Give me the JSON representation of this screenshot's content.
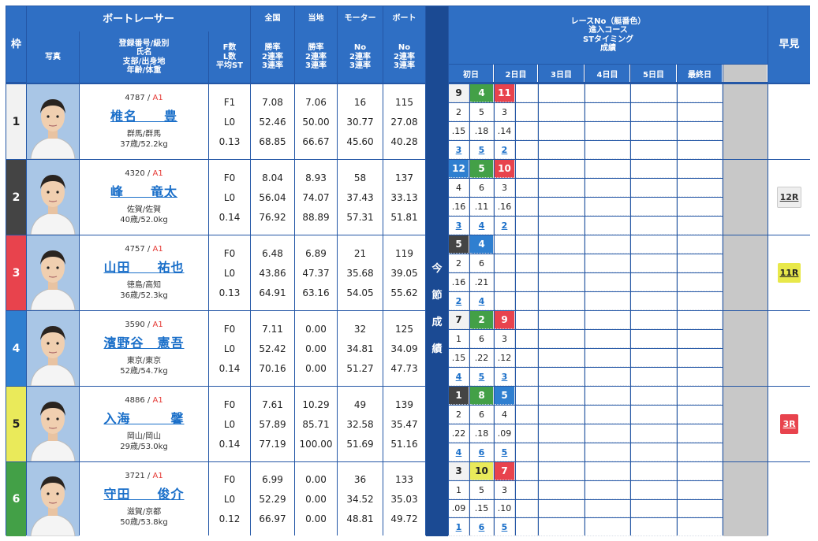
{
  "headers": {
    "waku": "枠",
    "photo": "写真",
    "racer": "ボートレーサー",
    "profile_lines": [
      "登録番号/級別",
      "氏名",
      "支部/出身地",
      "年齢/体重"
    ],
    "fl_lines": [
      "F数",
      "L数",
      "平均ST"
    ],
    "zenkoku": "全国",
    "touchi": "当地",
    "motor": "モーター",
    "boat": "ボート",
    "rate_lines": [
      "勝率",
      "2連率",
      "3連率"
    ],
    "no_lines": [
      "No",
      "2連率",
      "3連率"
    ],
    "race_lines": [
      "レースNo（艇番色）",
      "進入コース",
      "STタイミング",
      "成績"
    ],
    "days": [
      "初日",
      "2日目",
      "3日目",
      "4日目",
      "5日目",
      "最終日"
    ],
    "hayami": "早見",
    "konsetsu": [
      "今",
      "節",
      "成",
      "績"
    ]
  },
  "racers": [
    {
      "waku": "1",
      "reg": "4787",
      "cls": "A1",
      "name": "椎名　　豊",
      "pref": "群馬/群馬",
      "age": "37歳/52.2kg",
      "f": "F1",
      "l": "L0",
      "st": "0.13",
      "zenkoku": [
        "7.08",
        "52.46",
        "68.85"
      ],
      "touchi": [
        "7.06",
        "50.00",
        "66.67"
      ],
      "motor": [
        "16",
        "30.77",
        "45.60"
      ],
      "boat": [
        "115",
        "27.08",
        "40.28"
      ],
      "races": [
        {
          "no": "9",
          "color": "1",
          "course": "2",
          "st": ".15",
          "res": "3"
        },
        {
          "no": "4",
          "color": "6",
          "course": "5",
          "st": ".18",
          "res": "5"
        },
        {
          "no": "11",
          "color": "3",
          "course": "3",
          "st": ".14",
          "res": "2"
        }
      ],
      "hayami": ""
    },
    {
      "waku": "2",
      "reg": "4320",
      "cls": "A1",
      "name": "峰　　竜太",
      "pref": "佐賀/佐賀",
      "age": "40歳/52.0kg",
      "f": "F0",
      "l": "L0",
      "st": "0.14",
      "zenkoku": [
        "8.04",
        "56.04",
        "76.92"
      ],
      "touchi": [
        "8.93",
        "74.07",
        "88.89"
      ],
      "motor": [
        "58",
        "37.43",
        "57.31"
      ],
      "boat": [
        "137",
        "33.13",
        "51.81"
      ],
      "races": [
        {
          "no": "12",
          "color": "4",
          "course": "4",
          "st": ".16",
          "res": "3"
        },
        {
          "no": "5",
          "color": "6",
          "course": "6",
          "st": ".11",
          "res": "4"
        },
        {
          "no": "10",
          "color": "3",
          "course": "3",
          "st": ".16",
          "res": "2"
        }
      ],
      "hayami": "12R"
    },
    {
      "waku": "3",
      "reg": "4757",
      "cls": "A1",
      "name": "山田　　祐也",
      "pref": "徳島/高知",
      "age": "36歳/52.3kg",
      "f": "F0",
      "l": "L0",
      "st": "0.13",
      "zenkoku": [
        "6.48",
        "43.86",
        "64.91"
      ],
      "touchi": [
        "6.89",
        "47.37",
        "63.16"
      ],
      "motor": [
        "21",
        "35.68",
        "54.05"
      ],
      "boat": [
        "119",
        "39.05",
        "55.62"
      ],
      "races": [
        {
          "no": "5",
          "color": "2",
          "course": "2",
          "st": ".16",
          "res": "2"
        },
        {
          "no": "4",
          "color": "4",
          "course": "6",
          "st": ".21",
          "res": "4"
        }
      ],
      "hayami": "11R"
    },
    {
      "waku": "4",
      "reg": "3590",
      "cls": "A1",
      "name": "濱野谷　憲吾",
      "pref": "東京/東京",
      "age": "52歳/54.7kg",
      "f": "F0",
      "l": "L0",
      "st": "0.14",
      "zenkoku": [
        "7.11",
        "52.42",
        "70.16"
      ],
      "touchi": [
        "0.00",
        "0.00",
        "0.00"
      ],
      "motor": [
        "32",
        "34.81",
        "51.27"
      ],
      "boat": [
        "125",
        "34.09",
        "47.73"
      ],
      "races": [
        {
          "no": "7",
          "color": "1",
          "course": "1",
          "st": ".15",
          "res": "4"
        },
        {
          "no": "2",
          "color": "6",
          "course": "6",
          "st": ".22",
          "res": "5"
        },
        {
          "no": "9",
          "color": "3",
          "course": "3",
          "st": ".12",
          "res": "3"
        }
      ],
      "hayami": ""
    },
    {
      "waku": "5",
      "reg": "4886",
      "cls": "A1",
      "name": "入海　　　馨",
      "pref": "岡山/岡山",
      "age": "29歳/53.0kg",
      "f": "F0",
      "l": "L0",
      "st": "0.14",
      "zenkoku": [
        "7.61",
        "57.89",
        "77.19"
      ],
      "touchi": [
        "10.29",
        "85.71",
        "100.00"
      ],
      "motor": [
        "49",
        "32.58",
        "51.69"
      ],
      "boat": [
        "139",
        "35.47",
        "51.16"
      ],
      "races": [
        {
          "no": "1",
          "color": "2",
          "course": "2",
          "st": ".22",
          "res": "4"
        },
        {
          "no": "8",
          "color": "6",
          "course": "6",
          "st": ".18",
          "res": "6"
        },
        {
          "no": "5",
          "color": "4",
          "course": "4",
          "st": ".09",
          "res": "5"
        }
      ],
      "hayami": "3R"
    },
    {
      "waku": "6",
      "reg": "3721",
      "cls": "A1",
      "name": "守田　　俊介",
      "pref": "滋賀/京都",
      "age": "50歳/53.8kg",
      "f": "F0",
      "l": "L0",
      "st": "0.12",
      "zenkoku": [
        "6.99",
        "52.29",
        "66.97"
      ],
      "touchi": [
        "0.00",
        "0.00",
        "0.00"
      ],
      "motor": [
        "36",
        "34.52",
        "48.81"
      ],
      "boat": [
        "133",
        "35.03",
        "49.72"
      ],
      "races": [
        {
          "no": "3",
          "color": "1",
          "course": "1",
          "st": ".09",
          "res": "1"
        },
        {
          "no": "10",
          "color": "5",
          "course": "5",
          "st": ".15",
          "res": "6"
        },
        {
          "no": "7",
          "color": "3",
          "course": "3",
          "st": ".10",
          "res": "5"
        }
      ],
      "hayami": ""
    }
  ]
}
